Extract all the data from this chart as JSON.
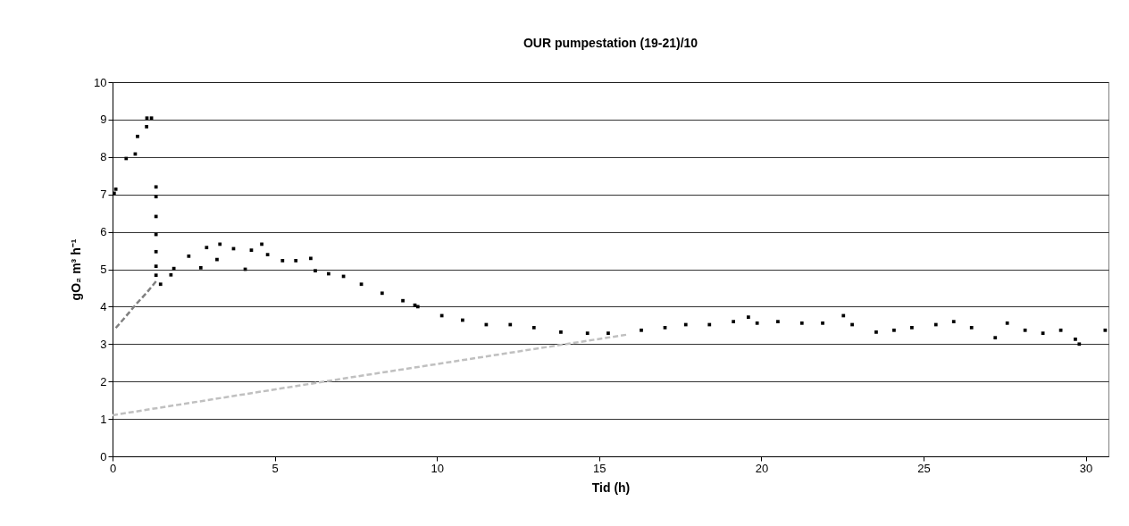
{
  "chart_data": {
    "type": "scatter",
    "title": "OUR pumpestation (19-21)/10",
    "xlabel": "Tid (h)",
    "ylabel": "gO₂ m³ h⁻¹",
    "xlim": [
      0,
      30.7
    ],
    "xticks": [
      0,
      5,
      10,
      15,
      20,
      25,
      30
    ],
    "ylim": [
      0,
      10
    ],
    "yticks": [
      0,
      1,
      2,
      3,
      4,
      5,
      6,
      7,
      8,
      9,
      10
    ],
    "grid": "y",
    "series": [
      {
        "color": "#000000",
        "marker": "square",
        "x": [
          0.05,
          0.1,
          0.42,
          0.7,
          0.77,
          1.05,
          1.06,
          1.2,
          1.34,
          1.34,
          1.34,
          1.34,
          1.34,
          1.34,
          1.34,
          1.48,
          1.8,
          1.89,
          2.35,
          2.72,
          2.9,
          3.22,
          3.31,
          3.73,
          4.09,
          4.28,
          4.6,
          4.78,
          5.24,
          5.65,
          6.11,
          6.25,
          6.66,
          7.12,
          7.67,
          8.31,
          8.95,
          9.32,
          9.41,
          10.15,
          10.79,
          11.52,
          12.26,
          12.99,
          13.82,
          14.64,
          15.28,
          16.3,
          17.03,
          17.67,
          18.4,
          19.14,
          19.6,
          19.87,
          20.51,
          21.25,
          21.89,
          22.53,
          22.8,
          23.54,
          24.09,
          24.64,
          25.38,
          25.93,
          26.48,
          27.21,
          27.58,
          28.13,
          28.68,
          29.23,
          29.68,
          29.8,
          30.6
        ],
        "values": [
          7.03,
          7.14,
          7.96,
          8.08,
          8.55,
          8.81,
          9.04,
          9.04,
          7.2,
          6.94,
          6.41,
          5.93,
          5.47,
          5.08,
          4.84,
          4.6,
          4.85,
          5.02,
          5.35,
          5.04,
          5.58,
          5.26,
          5.67,
          5.55,
          5.0,
          5.51,
          5.67,
          5.39,
          5.23,
          5.23,
          5.29,
          4.96,
          4.88,
          4.81,
          4.6,
          4.36,
          4.16,
          4.04,
          4.0,
          3.76,
          3.64,
          3.52,
          3.52,
          3.44,
          3.32,
          3.29,
          3.29,
          3.37,
          3.44,
          3.52,
          3.52,
          3.6,
          3.72,
          3.56,
          3.6,
          3.56,
          3.56,
          3.76,
          3.52,
          3.32,
          3.37,
          3.44,
          3.52,
          3.6,
          3.44,
          3.17,
          3.56,
          3.37,
          3.29,
          3.37,
          3.13,
          3.0,
          3.37
        ]
      },
      {
        "type": "line",
        "color": "#808080",
        "line_style": "dashed",
        "x": [
          0.1,
          0.42,
          0.74,
          1.06,
          1.38
        ],
        "values": [
          3.43,
          3.75,
          4.08,
          4.38,
          4.72
        ]
      },
      {
        "type": "line",
        "color": "#c0c0c0",
        "line_style": "dashed",
        "x": [
          0,
          7.49,
          15.84
        ],
        "values": [
          1.1,
          2.13,
          3.25
        ]
      }
    ]
  }
}
